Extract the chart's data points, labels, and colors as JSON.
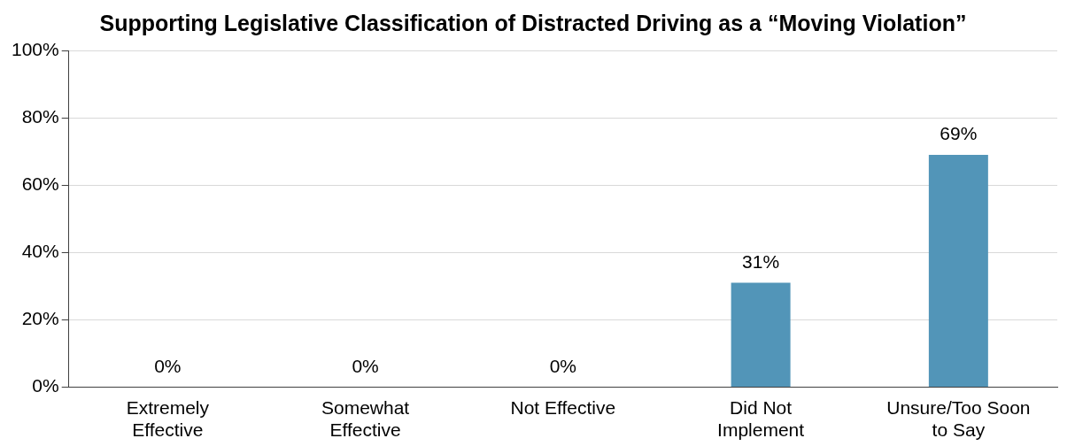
{
  "chart_data": {
    "type": "bar",
    "title": "Supporting Legislative Classification of Distracted Driving as a “Moving Violation”",
    "categories": [
      "Extremely Effective",
      "Somewhat Effective",
      "Not Effective",
      "Did Not Implement",
      "Unsure/Too Soon to Say"
    ],
    "values": [
      0,
      0,
      0,
      31,
      69
    ],
    "color": "#5295b8",
    "value_labels": [
      "0%",
      "0%",
      "0%",
      "31%",
      "69%"
    ],
    "ylim": [
      0,
      100
    ],
    "yticks": [
      {
        "value": 0,
        "label": "0%"
      },
      {
        "value": 20,
        "label": "20%"
      },
      {
        "value": 40,
        "label": "40%"
      },
      {
        "value": 60,
        "label": "60%"
      },
      {
        "value": 80,
        "label": "80%"
      },
      {
        "value": 100,
        "label": "100%"
      }
    ],
    "grid": "y",
    "legend": false
  }
}
